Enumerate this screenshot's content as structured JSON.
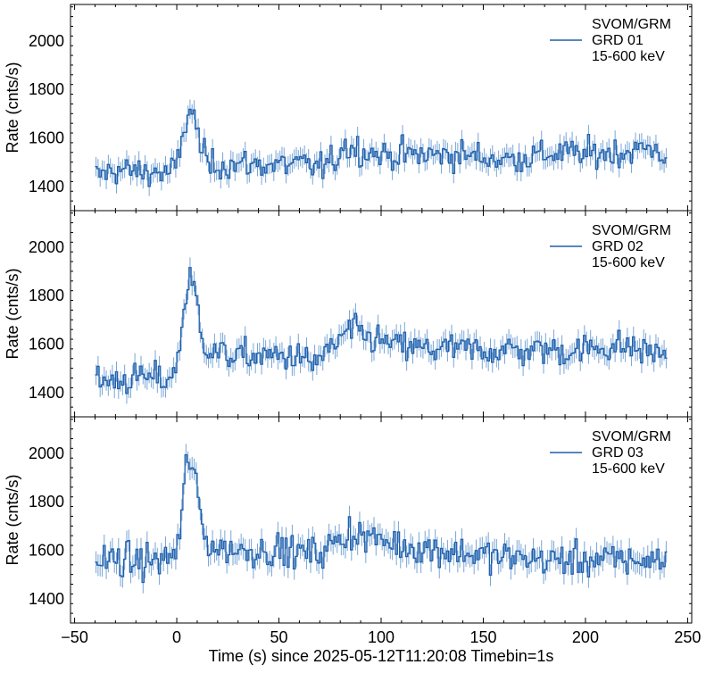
{
  "figure": {
    "xlabel": "Time (s) since 2025-05-12T11:20:08 Timebin=1s"
  },
  "colors": {
    "line": "#1f5faa",
    "errorbar": "#7aa6d6",
    "axes": "#000000",
    "background": "#ffffff"
  },
  "chart_data": [
    {
      "type": "line",
      "subtype": "step-with-errorbars",
      "ylabel": "Rate (cnts/s)",
      "xlim": [
        -52,
        252
      ],
      "ylim": [
        1300,
        2150
      ],
      "xticks": [
        -50,
        0,
        50,
        100,
        150,
        200,
        250
      ],
      "yticks": [
        1400,
        1600,
        1800,
        2000
      ],
      "legend": {
        "placement": "top-right",
        "lines": [
          "SVOM/GRM",
          "GRD 01",
          "15-600 keV"
        ]
      },
      "series": [
        {
          "name": "GRD 01",
          "timebin": 1,
          "x_range": [
            -40,
            240
          ],
          "x": [
            -40,
            -30,
            -20,
            -10,
            -5,
            0,
            2,
            4,
            6,
            8,
            10,
            12,
            15,
            20,
            30,
            40,
            50,
            60,
            70,
            78,
            80,
            90,
            100,
            110,
            120,
            130,
            140,
            150,
            160,
            170,
            180,
            190,
            200,
            210,
            220,
            230,
            235,
            240
          ],
          "y": [
            1440,
            1470,
            1460,
            1460,
            1450,
            1480,
            1560,
            1650,
            1720,
            1700,
            1620,
            1560,
            1490,
            1490,
            1490,
            1490,
            1490,
            1490,
            1480,
            1500,
            1570,
            1550,
            1530,
            1530,
            1530,
            1530,
            1530,
            1520,
            1510,
            1520,
            1530,
            1540,
            1530,
            1540,
            1540,
            1560,
            1550,
            1520
          ],
          "yerr": 40
        }
      ]
    },
    {
      "type": "line",
      "subtype": "step-with-errorbars",
      "ylabel": "Rate (cnts/s)",
      "xlim": [
        -52,
        252
      ],
      "ylim": [
        1300,
        2150
      ],
      "xticks": [
        -50,
        0,
        50,
        100,
        150,
        200,
        250
      ],
      "yticks": [
        1400,
        1600,
        1800,
        2000
      ],
      "legend": {
        "placement": "top-right",
        "lines": [
          "SVOM/GRM",
          "GRD 02",
          "15-600 keV"
        ]
      },
      "series": [
        {
          "name": "GRD 02",
          "timebin": 1,
          "x_range": [
            -40,
            240
          ],
          "x": [
            -40,
            -30,
            -20,
            -10,
            -5,
            0,
            2,
            4,
            6,
            8,
            10,
            12,
            15,
            20,
            30,
            40,
            50,
            60,
            66,
            70,
            75,
            80,
            85,
            90,
            100,
            110,
            120,
            130,
            140,
            150,
            160,
            170,
            180,
            190,
            200,
            210,
            220,
            230,
            240
          ],
          "y": [
            1440,
            1450,
            1460,
            1460,
            1450,
            1500,
            1640,
            1780,
            1860,
            1850,
            1760,
            1650,
            1580,
            1560,
            1550,
            1550,
            1550,
            1550,
            1510,
            1550,
            1570,
            1620,
            1660,
            1640,
            1610,
            1590,
            1580,
            1580,
            1580,
            1570,
            1580,
            1570,
            1580,
            1570,
            1580,
            1590,
            1590,
            1570,
            1560
          ],
          "yerr": 42
        }
      ]
    },
    {
      "type": "line",
      "subtype": "step-with-errorbars",
      "ylabel": "Rate (cnts/s)",
      "xlim": [
        -52,
        252
      ],
      "ylim": [
        1300,
        2150
      ],
      "xticks": [
        -50,
        0,
        50,
        100,
        150,
        200,
        250
      ],
      "yticks": [
        1400,
        1600,
        1800,
        2000
      ],
      "legend": {
        "placement": "top-right",
        "lines": [
          "SVOM/GRM",
          "GRD 03",
          "15-600 keV"
        ]
      },
      "series": [
        {
          "name": "GRD 03",
          "timebin": 1,
          "x_range": [
            -40,
            240
          ],
          "x": [
            -40,
            -30,
            -20,
            -10,
            -5,
            0,
            2,
            4,
            5,
            6,
            8,
            10,
            12,
            14,
            20,
            30,
            40,
            50,
            60,
            70,
            75,
            80,
            85,
            90,
            100,
            110,
            120,
            130,
            140,
            150,
            160,
            170,
            180,
            190,
            200,
            210,
            220,
            230,
            240
          ],
          "y": [
            1550,
            1560,
            1550,
            1560,
            1560,
            1600,
            1700,
            1880,
            2000,
            1980,
            1920,
            1850,
            1720,
            1640,
            1610,
            1600,
            1600,
            1600,
            1590,
            1590,
            1620,
            1640,
            1680,
            1660,
            1640,
            1620,
            1610,
            1600,
            1590,
            1580,
            1570,
            1570,
            1560,
            1560,
            1560,
            1560,
            1560,
            1560,
            1560
          ],
          "yerr": 45
        }
      ]
    }
  ]
}
